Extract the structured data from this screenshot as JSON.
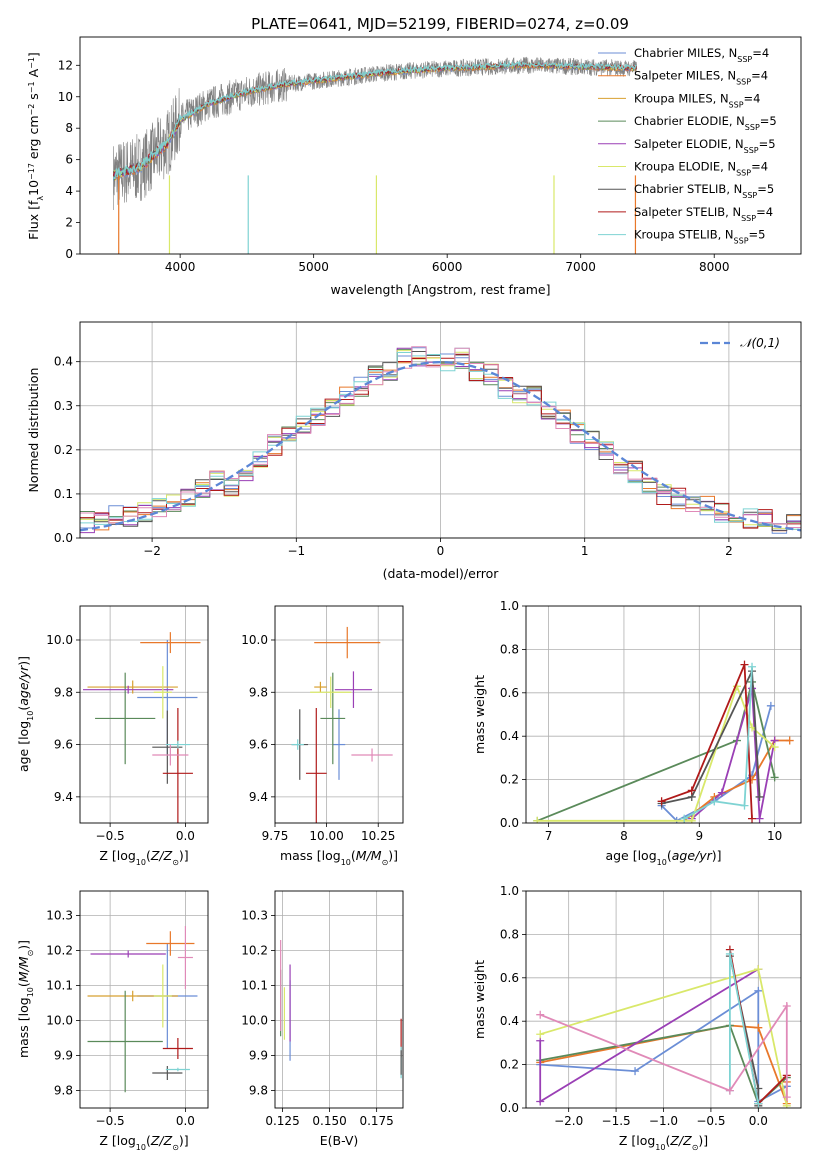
{
  "figure": {
    "title": "PLATE=0641, MJD=52199, FIBERID=0274, z=0.09"
  },
  "colors": {
    "Chabrier MILES": "#6b8ed6",
    "Salpeter MILES": "#e8782a",
    "Kroupa MILES": "#d8a030",
    "Chabrier ELODIE": "#5a8a5a",
    "Salpeter ELODIE": "#9a3fb5",
    "Kroupa ELODIE": "#d9e86a",
    "Chabrier STELIB": "#555555",
    "Salpeter STELIB": "#b01a1a",
    "Kroupa STELIB": "#7ed3d3",
    "extra": "#e08ab8"
  },
  "chart_data": [
    {
      "id": "spectrum",
      "type": "line",
      "title": "PLATE=0641, MJD=52199, FIBERID=0274, z=0.09",
      "xlabel": "wavelength [Angstrom, rest frame]",
      "ylabel": "Flux [f_λ 10^-17 erg cm^-2 s^-1 A^-1]",
      "xlim": [
        3250,
        8650
      ],
      "ylim": [
        0,
        13.8
      ],
      "xticks": [
        "4000",
        "5000",
        "6000",
        "7000",
        "8000"
      ],
      "yticks": [
        "0",
        "2",
        "4",
        "6",
        "8",
        "10",
        "12"
      ],
      "legend_position": "right",
      "legend": [
        "Chabrier MILES, N_SSP=4",
        "Salpeter MILES, N_SSP=4",
        "Kroupa MILES, N_SSP=4",
        "Chabrier ELODIE, N_SSP=5",
        "Salpeter ELODIE, N_SSP=5",
        "Kroupa ELODIE, N_SSP=4",
        "Chabrier STELIB, N_SSP=5",
        "Salpeter STELIB, N_SSP=4",
        "Kroupa STELIB, N_SSP=5"
      ],
      "model_curve": {
        "x": [
          3500,
          3700,
          3900,
          4000,
          4200,
          4500,
          4800,
          5000,
          5200,
          5500,
          5800,
          6000,
          6300,
          6600,
          7000,
          7400
        ],
        "y": [
          5.0,
          5.5,
          7.0,
          8.5,
          9.5,
          10.3,
          10.8,
          11.0,
          11.2,
          11.5,
          11.7,
          11.8,
          11.9,
          12.0,
          11.9,
          11.8
        ]
      },
      "data_range": [
        3500,
        7420
      ]
    },
    {
      "id": "residuals",
      "type": "step",
      "xlabel": "(data-model)/error",
      "ylabel": "Normed distribution",
      "xlim": [
        -2.5,
        2.5
      ],
      "ylim": [
        0,
        0.49
      ],
      "xticks": [
        "−2",
        "−1",
        "0",
        "1",
        "2"
      ],
      "yticks": [
        "0.0",
        "0.1",
        "0.2",
        "0.3",
        "0.4"
      ],
      "legend": [
        "𝒩(0,1)"
      ],
      "legend_position": "top-right",
      "bin_width": 0.1,
      "x": [
        -2.45,
        -2.35,
        -2.25,
        -2.15,
        -2.05,
        -1.95,
        -1.85,
        -1.75,
        -1.65,
        -1.55,
        -1.45,
        -1.35,
        -1.25,
        -1.15,
        -1.05,
        -0.95,
        -0.85,
        -0.75,
        -0.65,
        -0.55,
        -0.45,
        -0.35,
        -0.25,
        -0.15,
        -0.05,
        0.05,
        0.15,
        0.25,
        0.35,
        0.45,
        0.55,
        0.65,
        0.75,
        0.85,
        0.95,
        1.05,
        1.15,
        1.25,
        1.35,
        1.45,
        1.55,
        1.65,
        1.75,
        1.85,
        1.95,
        2.05,
        2.15,
        2.25,
        2.35,
        2.45
      ],
      "base": [
        0.037,
        0.041,
        0.055,
        0.05,
        0.058,
        0.07,
        0.08,
        0.095,
        0.11,
        0.13,
        0.12,
        0.15,
        0.18,
        0.21,
        0.235,
        0.26,
        0.28,
        0.3,
        0.32,
        0.34,
        0.37,
        0.38,
        0.41,
        0.41,
        0.4,
        0.4,
        0.41,
        0.38,
        0.37,
        0.34,
        0.33,
        0.32,
        0.29,
        0.27,
        0.24,
        0.22,
        0.2,
        0.17,
        0.15,
        0.12,
        0.1,
        0.09,
        0.08,
        0.07,
        0.06,
        0.05,
        0.045,
        0.04,
        0.035,
        0.03
      ]
    },
    {
      "id": "age-vs-Z",
      "type": "errorbar",
      "xlabel": "Z [log10(Z/Z⊙)]",
      "ylabel": "age [log10(age/yr)]",
      "xlim": [
        -0.7,
        0.15
      ],
      "ylim": [
        9.3,
        10.13
      ],
      "xticks": [
        "−0.5",
        "0.0"
      ],
      "yticks": [
        "9.4",
        "9.6",
        "9.8",
        "10.0"
      ],
      "points": [
        {
          "s": "Chabrier MILES",
          "x": -0.12,
          "y": 9.78,
          "xe": 0.2,
          "ye": 0.44
        },
        {
          "s": "Salpeter MILES",
          "x": -0.1,
          "y": 9.99,
          "xe": 0.2,
          "ye": 0.08
        },
        {
          "s": "Kroupa MILES",
          "x": -0.35,
          "y": 9.82,
          "xe": 0.3,
          "ye": 0.05
        },
        {
          "s": "Chabrier ELODIE",
          "x": -0.4,
          "y": 9.7,
          "xe": 0.2,
          "ye": 0.35
        },
        {
          "s": "Salpeter ELODIE",
          "x": -0.38,
          "y": 9.81,
          "xe": 0.3,
          "ye": 0.03
        },
        {
          "s": "Kroupa ELODIE",
          "x": -0.15,
          "y": 9.8,
          "xe": 0.06,
          "ye": 0.2
        },
        {
          "s": "Chabrier STELIB",
          "x": -0.12,
          "y": 9.59,
          "xe": 0.1,
          "ye": 0.28
        },
        {
          "s": "Salpeter STELIB",
          "x": -0.05,
          "y": 9.49,
          "xe": 0.1,
          "ye": 0.5
        },
        {
          "s": "Kroupa STELIB",
          "x": -0.05,
          "y": 9.6,
          "xe": 0.08,
          "ye": 0.03
        },
        {
          "s": "extra",
          "x": -0.1,
          "y": 9.56,
          "xe": 0.12,
          "ye": 0.08
        }
      ]
    },
    {
      "id": "age-vs-mass",
      "type": "errorbar",
      "xlabel": "mass [log10(M/M⊙)]",
      "ylabel": "",
      "xlim": [
        9.75,
        10.37
      ],
      "ylim": [
        9.3,
        10.13
      ],
      "xticks": [
        "9.75",
        "10.00",
        "10.25"
      ],
      "yticks": [
        "9.4",
        "9.6",
        "9.8",
        "10.0"
      ],
      "points": [
        {
          "s": "Chabrier MILES",
          "x": 10.06,
          "y": 9.6,
          "xe": 0.03,
          "ye": 0.27
        },
        {
          "s": "Salpeter MILES",
          "x": 10.1,
          "y": 9.99,
          "xe": 0.16,
          "ye": 0.12
        },
        {
          "s": "Kroupa MILES",
          "x": 9.97,
          "y": 9.82,
          "xe": 0.03,
          "ye": 0.04
        },
        {
          "s": "Chabrier ELODIE",
          "x": 10.03,
          "y": 9.7,
          "xe": 0.06,
          "ye": 0.35
        },
        {
          "s": "Salpeter ELODIE",
          "x": 10.13,
          "y": 9.81,
          "xe": 0.09,
          "ye": 0.14
        },
        {
          "s": "Kroupa ELODIE",
          "x": 10.02,
          "y": 9.8,
          "xe": 0.1,
          "ye": 0.12
        },
        {
          "s": "Chabrier STELIB",
          "x": 9.87,
          "y": 9.6,
          "xe": 0.04,
          "ye": 0.27
        },
        {
          "s": "Salpeter STELIB",
          "x": 9.95,
          "y": 9.49,
          "xe": 0.05,
          "ye": 0.5
        },
        {
          "s": "Kroupa STELIB",
          "x": 9.86,
          "y": 9.6,
          "xe": 0.03,
          "ye": 0.04
        },
        {
          "s": "extra",
          "x": 10.22,
          "y": 9.56,
          "xe": 0.1,
          "ye": 0.05
        }
      ]
    },
    {
      "id": "weight-vs-age",
      "type": "line",
      "xlabel": "age [log10(age/yr)]",
      "ylabel": "mass weight",
      "xlim": [
        6.7,
        10.35
      ],
      "ylim": [
        0,
        1.0
      ],
      "xticks": [
        "7",
        "8",
        "9",
        "10"
      ],
      "yticks": [
        "0.0",
        "0.2",
        "0.4",
        "0.6",
        "0.8",
        "1.0"
      ],
      "series": [
        {
          "s": "Chabrier MILES",
          "x": [
            8.5,
            8.7,
            9.2,
            9.7,
            9.95
          ],
          "y": [
            0.08,
            0.01,
            0.1,
            0.22,
            0.54
          ]
        },
        {
          "s": "Salpeter MILES",
          "x": [
            8.8,
            9.2,
            9.7,
            10.0,
            10.2
          ],
          "y": [
            0.01,
            0.12,
            0.2,
            0.38,
            0.38
          ]
        },
        {
          "s": "Chabrier ELODIE",
          "x": [
            6.85,
            9.5,
            9.7,
            10.0
          ],
          "y": [
            0.01,
            0.38,
            0.65,
            0.21
          ]
        },
        {
          "s": "Salpeter ELODIE",
          "x": [
            8.9,
            9.3,
            9.7,
            9.8,
            10.0
          ],
          "y": [
            0.02,
            0.14,
            0.62,
            0.02,
            0.38
          ]
        },
        {
          "s": "Kroupa ELODIE",
          "x": [
            6.85,
            8.9,
            9.5,
            9.7,
            10.0
          ],
          "y": [
            0.01,
            0.01,
            0.63,
            0.44,
            0.35
          ]
        },
        {
          "s": "Chabrier STELIB",
          "x": [
            8.5,
            8.9,
            9.7,
            9.8
          ],
          "y": [
            0.09,
            0.12,
            0.7,
            0.12
          ]
        },
        {
          "s": "Salpeter STELIB",
          "x": [
            8.5,
            8.9,
            9.6,
            9.7
          ],
          "y": [
            0.1,
            0.15,
            0.73,
            0.02
          ]
        },
        {
          "s": "Kroupa STELIB",
          "x": [
            8.8,
            9.2,
            9.6,
            9.7
          ],
          "y": [
            0.02,
            0.1,
            0.08,
            0.72
          ]
        }
      ]
    },
    {
      "id": "mass-vs-Z",
      "type": "errorbar",
      "xlabel": "Z [log10(Z/Z⊙)]",
      "ylabel": "mass [log10(M/M⊙)]",
      "xlim": [
        -0.7,
        0.15
      ],
      "ylim": [
        9.75,
        10.37
      ],
      "xticks": [
        "−0.5",
        "0.0"
      ],
      "yticks": [
        "9.8",
        "9.9",
        "10.0",
        "10.1",
        "10.2",
        "10.3"
      ],
      "points": [
        {
          "s": "Chabrier MILES",
          "x": -0.12,
          "y": 10.07,
          "xe": 0.2,
          "ye": 0.3
        },
        {
          "s": "Salpeter MILES",
          "x": -0.1,
          "y": 10.22,
          "xe": 0.16,
          "ye": 0.07
        },
        {
          "s": "Kroupa MILES",
          "x": -0.35,
          "y": 10.07,
          "xe": 0.3,
          "ye": 0.03
        },
        {
          "s": "Chabrier ELODIE",
          "x": -0.4,
          "y": 9.94,
          "xe": 0.25,
          "ye": 0.29
        },
        {
          "s": "Salpeter ELODIE",
          "x": -0.38,
          "y": 10.19,
          "xe": 0.25,
          "ye": 0.02
        },
        {
          "s": "Kroupa ELODIE",
          "x": -0.15,
          "y": 10.07,
          "xe": 0.06,
          "ye": 0.18
        },
        {
          "s": "Chabrier STELIB",
          "x": -0.12,
          "y": 9.85,
          "xe": 0.1,
          "ye": 0.04
        },
        {
          "s": "Salpeter STELIB",
          "x": -0.05,
          "y": 9.92,
          "xe": 0.1,
          "ye": 0.06
        },
        {
          "s": "Kroupa STELIB",
          "x": -0.05,
          "y": 9.86,
          "xe": 0.08,
          "ye": 0.01
        },
        {
          "s": "extra",
          "x": 0.0,
          "y": 10.18,
          "xe": 0.05,
          "ye": 0.18
        }
      ]
    },
    {
      "id": "mass-vs-ebv",
      "type": "errorbar",
      "xlabel": "E(B-V)",
      "ylabel": "",
      "xlim": [
        0.121,
        0.189
      ],
      "ylim": [
        9.75,
        10.37
      ],
      "xticks": [
        "0.125",
        "0.150",
        "0.175"
      ],
      "yticks": [
        "9.8",
        "9.9",
        "10.0",
        "10.1",
        "10.2",
        "10.3"
      ],
      "points": [
        {
          "s": "Chabrier MILES",
          "x": 0.129,
          "y": 10.0,
          "xe": 0.0,
          "ye": 0.23
        },
        {
          "s": "Salpeter ELODIE",
          "x": 0.129,
          "y": 10.05,
          "xe": 0.0,
          "ye": 0.22
        },
        {
          "s": "Chabrier ELODIE",
          "x": 0.124,
          "y": 10.05,
          "xe": 0.0,
          "ye": 0.19
        },
        {
          "s": "Kroupa ELODIE",
          "x": 0.126,
          "y": 10.02,
          "xe": 0.0,
          "ye": 0.15
        },
        {
          "s": "extra",
          "x": 0.124,
          "y": 10.1,
          "xe": 0.0,
          "ye": 0.26
        },
        {
          "s": "Salpeter STELIB",
          "x": 0.188,
          "y": 9.95,
          "xe": 0.0,
          "ye": 0.11
        },
        {
          "s": "Kroupa STELIB",
          "x": 0.188,
          "y": 9.88,
          "xe": 0.0,
          "ye": 0.09
        },
        {
          "s": "Chabrier STELIB",
          "x": 0.188,
          "y": 9.88,
          "xe": 0.0,
          "ye": 0.07
        }
      ]
    },
    {
      "id": "weight-vs-Z",
      "type": "line",
      "xlabel": "Z [log10(Z/Z⊙)]",
      "ylabel": "mass weight",
      "xlim": [
        -2.45,
        0.45
      ],
      "ylim": [
        0,
        1.0
      ],
      "xticks": [
        "−2.0",
        "−1.5",
        "−1.0",
        "−0.5",
        "0.0"
      ],
      "yticks": [
        "0.0",
        "0.2",
        "0.4",
        "0.6",
        "0.8",
        "1.0"
      ],
      "series": [
        {
          "s": "Chabrier MILES",
          "x": [
            -2.3,
            -1.3,
            0.0,
            0.0,
            0.3
          ],
          "y": [
            0.2,
            0.17,
            0.54,
            0.03,
            0.1
          ]
        },
        {
          "s": "Salpeter MILES",
          "x": [
            -2.3,
            -0.3,
            0.0,
            0.3,
            0.3
          ],
          "y": [
            0.21,
            0.38,
            0.37,
            0.02,
            0.12
          ]
        },
        {
          "s": "Chabrier ELODIE",
          "x": [
            -2.3,
            -0.3,
            0.0,
            0.3
          ],
          "y": [
            0.22,
            0.38,
            0.02,
            0.14
          ]
        },
        {
          "s": "Salpeter ELODIE",
          "x": [
            -2.3,
            -2.3,
            0.0
          ],
          "y": [
            0.31,
            0.03,
            0.64
          ]
        },
        {
          "s": "Kroupa ELODIE",
          "x": [
            -2.3,
            0.0,
            0.3
          ],
          "y": [
            0.34,
            0.64,
            0.01
          ]
        },
        {
          "s": "Chabrier STELIB",
          "x": [
            -0.3,
            0.0,
            0.0
          ],
          "y": [
            0.7,
            0.09,
            0.01
          ]
        },
        {
          "s": "Salpeter STELIB",
          "x": [
            -0.3,
            0.0,
            0.3
          ],
          "y": [
            0.73,
            0.02,
            0.15
          ]
        },
        {
          "s": "Kroupa STELIB",
          "x": [
            -0.3,
            -0.3,
            0.0
          ],
          "y": [
            0.08,
            0.71,
            0.02
          ]
        },
        {
          "s": "extra",
          "x": [
            -2.3,
            -0.3,
            0.3,
            0.3
          ],
          "y": [
            0.43,
            0.08,
            0.47,
            0.05
          ]
        }
      ]
    }
  ]
}
